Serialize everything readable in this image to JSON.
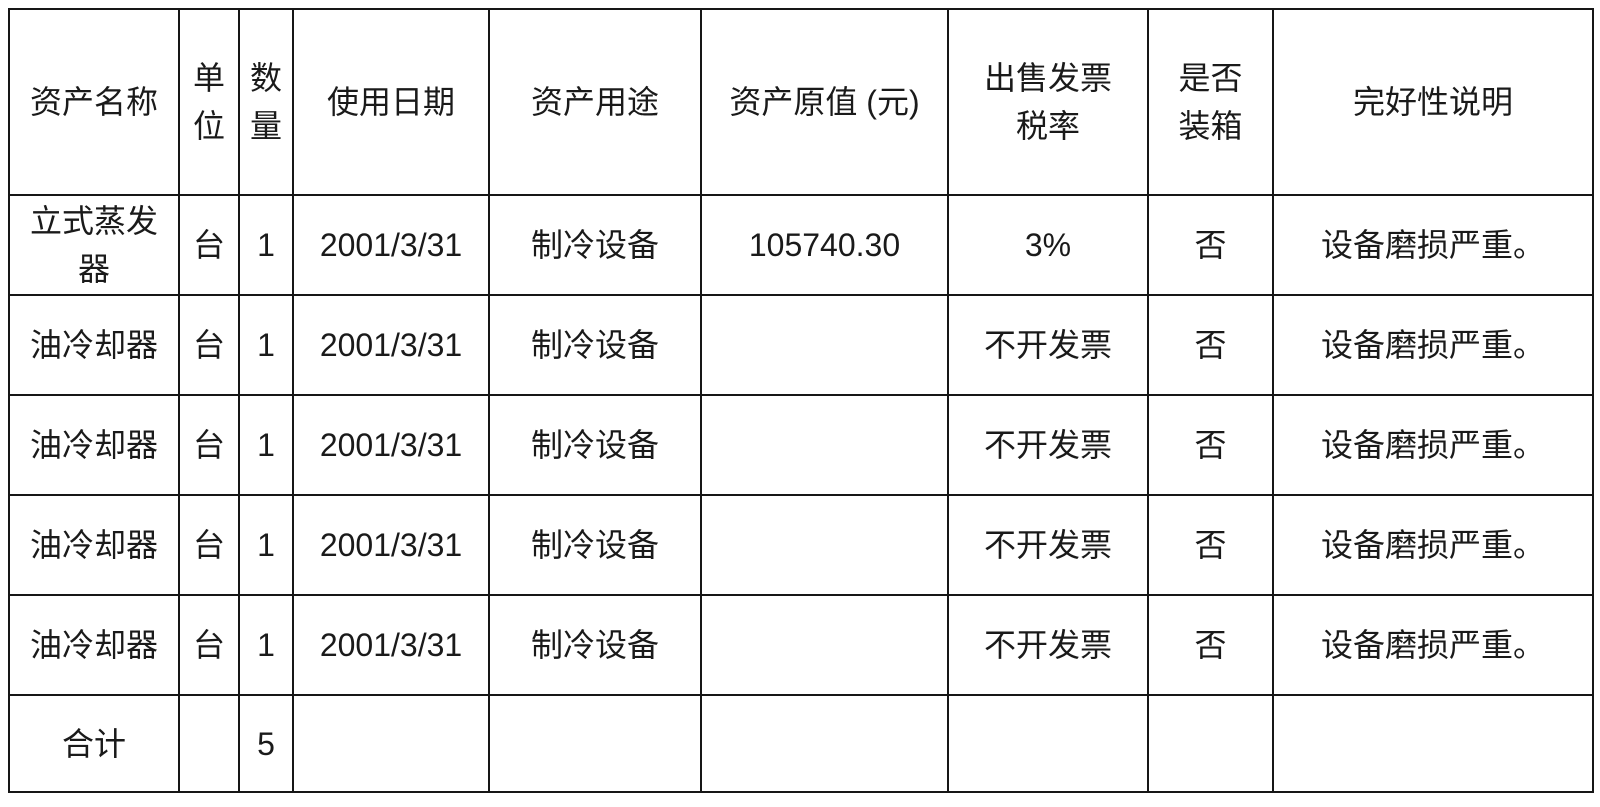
{
  "table": {
    "columns": [
      {
        "key": "name",
        "label": "资产名称"
      },
      {
        "key": "unit",
        "label": "单\n位"
      },
      {
        "key": "qty",
        "label": "数\n量"
      },
      {
        "key": "date",
        "label": "使用日期"
      },
      {
        "key": "purpose",
        "label": "资产用途"
      },
      {
        "key": "value",
        "label": "资产原值 (元)"
      },
      {
        "key": "tax",
        "label": "出售发票\n税率"
      },
      {
        "key": "boxed",
        "label": "是否\n装箱"
      },
      {
        "key": "condition",
        "label": "完好性说明"
      }
    ],
    "rows": [
      {
        "name": "立式蒸发器",
        "unit": "台",
        "qty": "1",
        "date": "2001/3/31",
        "purpose": "制冷设备",
        "value": "105740.30",
        "tax": "3%",
        "boxed": "否",
        "condition": "设备磨损严重。"
      },
      {
        "name": "油冷却器",
        "unit": "台",
        "qty": "1",
        "date": "2001/3/31",
        "purpose": "制冷设备",
        "value": "",
        "tax": "不开发票",
        "boxed": "否",
        "condition": "设备磨损严重。"
      },
      {
        "name": "油冷却器",
        "unit": "台",
        "qty": "1",
        "date": "2001/3/31",
        "purpose": "制冷设备",
        "value": "",
        "tax": "不开发票",
        "boxed": "否",
        "condition": "设备磨损严重。"
      },
      {
        "name": "油冷却器",
        "unit": "台",
        "qty": "1",
        "date": "2001/3/31",
        "purpose": "制冷设备",
        "value": "",
        "tax": "不开发票",
        "boxed": "否",
        "condition": "设备磨损严重。"
      },
      {
        "name": "油冷却器",
        "unit": "台",
        "qty": "1",
        "date": "2001/3/31",
        "purpose": "制冷设备",
        "value": "",
        "tax": "不开发票",
        "boxed": "否",
        "condition": "设备磨损严重。"
      }
    ],
    "total_row": {
      "name": "合计",
      "unit": "",
      "qty": "5",
      "date": "",
      "purpose": "",
      "value": "",
      "tax": "",
      "boxed": "",
      "condition": ""
    }
  },
  "colors": {
    "border": "#161616",
    "text": "#1a1a1a",
    "background": "#ffffff"
  }
}
